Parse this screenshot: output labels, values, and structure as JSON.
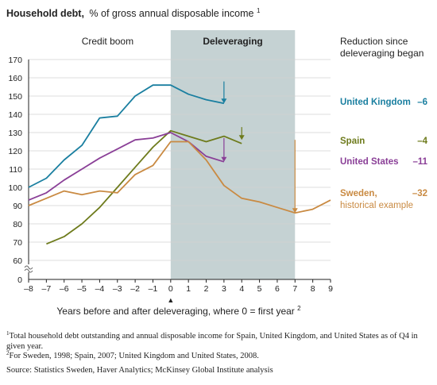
{
  "chart_data": {
    "type": "line",
    "title": "Household debt,",
    "subtitle": "% of gross annual disposable income",
    "title_footnote_mark": "1",
    "xlabel": "Years before and after deleveraging, where 0 = first year",
    "xlabel_footnote_mark": "2",
    "zero_marker": "▲",
    "x_ticks": [
      "–8",
      "–7",
      "–6",
      "–5",
      "–4",
      "–3",
      "–2",
      "–1",
      "0",
      "1",
      "2",
      "3",
      "4",
      "5",
      "6",
      "7",
      "8",
      "9"
    ],
    "y_ticks": [
      "0",
      "60",
      "70",
      "80",
      "90",
      "100",
      "110",
      "120",
      "130",
      "140",
      "150",
      "160",
      "170"
    ],
    "xlim": [
      -8,
      9
    ],
    "ylim": [
      60,
      170
    ],
    "y_axis_break": true,
    "grid": true,
    "regions": [
      {
        "label": "Credit boom",
        "x_range": [
          -8,
          0
        ]
      },
      {
        "label": "Deleveraging",
        "x_range": [
          0,
          7
        ],
        "shaded": true,
        "color": "#c5d2d3"
      }
    ],
    "reduction_header": "Reduction since deleveraging began",
    "series": [
      {
        "name": "United Kingdom",
        "color": "#1a7fa0",
        "reduction": "–6",
        "x": [
          -8,
          -7,
          -6,
          -5,
          -4,
          -3,
          -2,
          -1,
          0,
          1,
          2,
          3
        ],
        "y": [
          100,
          105,
          115,
          123,
          138,
          139,
          150,
          156,
          156,
          151,
          148,
          146
        ],
        "arrow": {
          "x": 3,
          "from": 158,
          "to": 146
        }
      },
      {
        "name": "Spain",
        "color": "#6e7b1c",
        "reduction": "–4",
        "x": [
          -7,
          -6,
          -5,
          -4,
          -3,
          -2,
          -1,
          0,
          1,
          2,
          3,
          4
        ],
        "y": [
          69,
          73,
          80,
          89,
          100,
          111,
          122,
          131,
          128,
          125,
          128,
          124
        ],
        "arrow": {
          "x": 4,
          "from": 133,
          "to": 126
        }
      },
      {
        "name": "United States",
        "color": "#8a3f97",
        "reduction": "–11",
        "x": [
          -8,
          -7,
          -6,
          -5,
          -4,
          -3,
          -2,
          -1,
          0,
          1,
          2,
          3
        ],
        "y": [
          93,
          97,
          104,
          110,
          116,
          121,
          126,
          127,
          130,
          125,
          117,
          114
        ],
        "arrow": {
          "x": 3,
          "from": 127,
          "to": 114
        }
      },
      {
        "name": "Sweden,",
        "name_line2": "historical example",
        "color": "#c98a42",
        "reduction": "–32",
        "x": [
          -8,
          -7,
          -6,
          -5,
          -4,
          -3,
          -2,
          -1,
          0,
          1,
          2,
          3,
          4,
          5,
          6,
          7,
          8,
          9
        ],
        "y": [
          90,
          94,
          98,
          96,
          98,
          97,
          107,
          112,
          125,
          125,
          115,
          101,
          94,
          92,
          89,
          86,
          88,
          93
        ],
        "arrow": {
          "x": 7,
          "from": 126,
          "to": 86
        }
      }
    ]
  },
  "footnotes": [
    {
      "mark": "1",
      "text": "Total household debt outstanding and annual disposable income for Spain, United Kingdom, and United States as of Q4 in given year."
    },
    {
      "mark": "2",
      "text": "For Sweden, 1998; Spain, 2007; United Kingdom and United States, 2008."
    }
  ],
  "source": "Source: Statistics Sweden, Haver Analytics; McKinsey Global Institute analysis"
}
